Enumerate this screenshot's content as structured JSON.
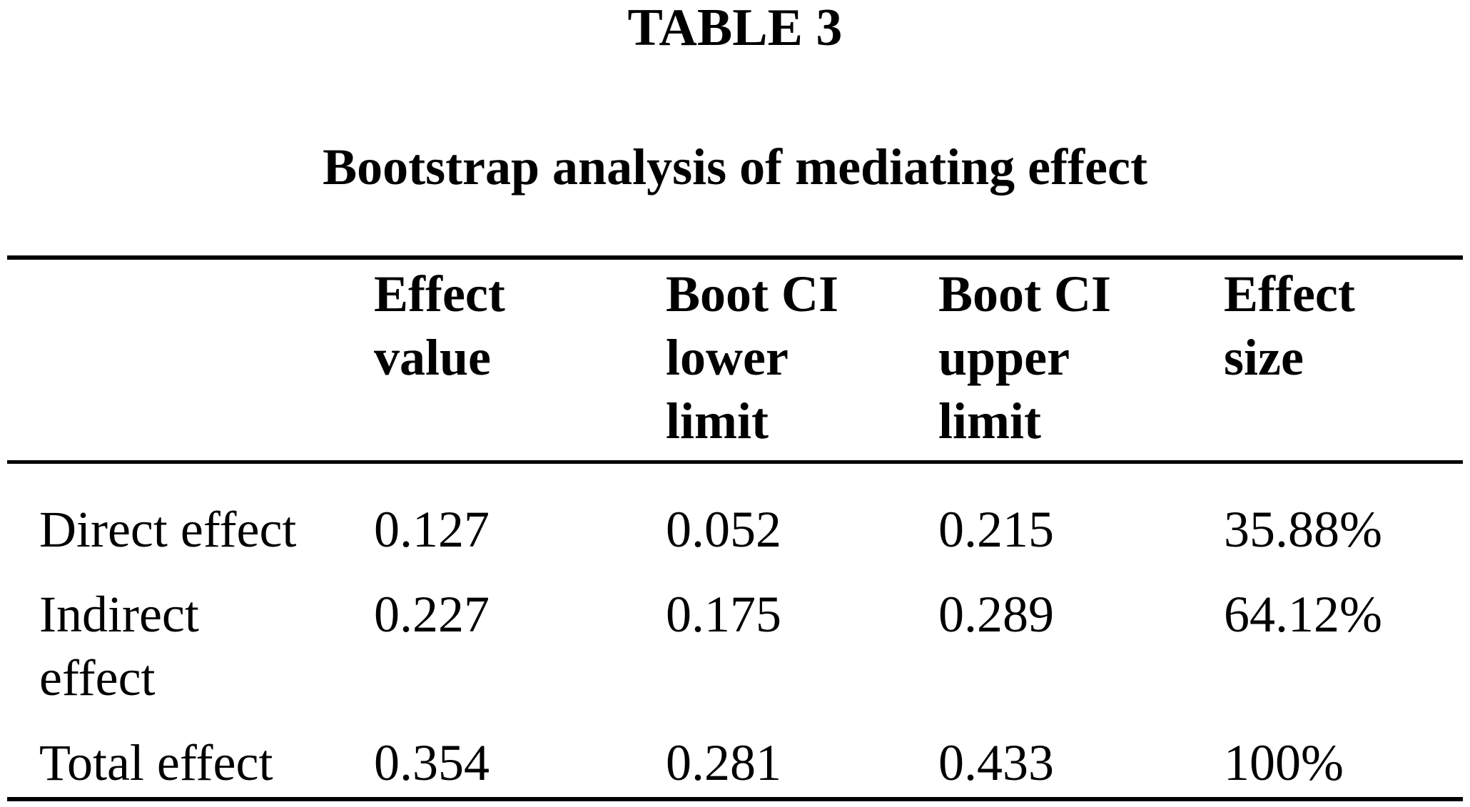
{
  "title": "TABLE 3",
  "subtitle": "Bootstrap analysis of mediating effect",
  "colors": {
    "background": "#ffffff",
    "text": "#000000",
    "rule": "#000000"
  },
  "table": {
    "header": {
      "row_label": "",
      "effect_value": "Effect\nvalue",
      "boot_ci_lower": "Boot CI\nlower\nlimit",
      "boot_ci_upper": "Boot CI\nupper\nlimit",
      "effect_size": "Effect\nsize"
    },
    "rows": [
      {
        "label": "Direct effect",
        "effect_value": "0.127",
        "boot_ci_lower": "0.052",
        "boot_ci_upper": "0.215",
        "effect_size": "35.88%"
      },
      {
        "label": "Indirect\neffect",
        "effect_value": "0.227",
        "boot_ci_lower": "0.175",
        "boot_ci_upper": "0.289",
        "effect_size": "64.12%"
      },
      {
        "label": "Total effect",
        "effect_value": "0.354",
        "boot_ci_lower": "0.281",
        "boot_ci_upper": "0.433",
        "effect_size": "100%"
      }
    ]
  },
  "chart_data": {
    "type": "table",
    "title": "TABLE 3 — Bootstrap analysis of mediating effect",
    "columns": [
      "",
      "Effect value",
      "Boot CI lower limit",
      "Boot CI upper limit",
      "Effect size"
    ],
    "rows": [
      [
        "Direct effect",
        0.127,
        0.052,
        0.215,
        "35.88%"
      ],
      [
        "Indirect effect",
        0.227,
        0.175,
        0.289,
        "64.12%"
      ],
      [
        "Total effect",
        0.354,
        0.281,
        0.433,
        "100%"
      ]
    ]
  }
}
